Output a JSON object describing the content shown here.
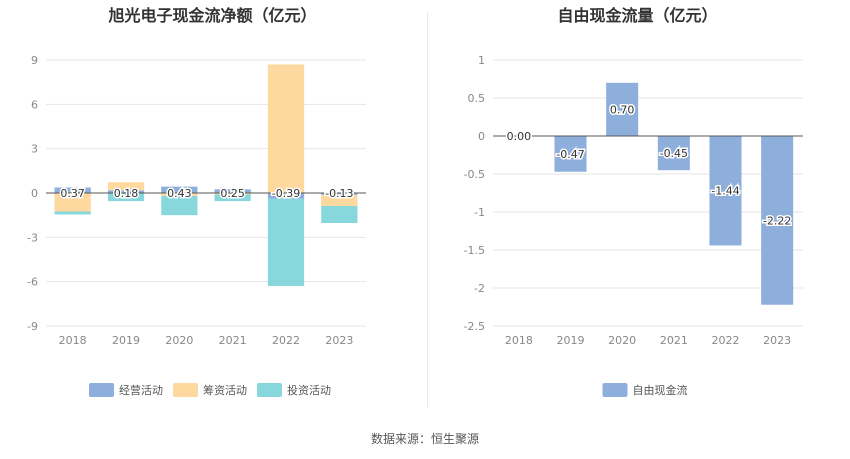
{
  "source_text": "数据来源：恒生聚源",
  "chart_data": [
    {
      "type": "bar",
      "stacked": true,
      "title": "旭光电子现金流净额（亿元）",
      "categories": [
        "2018",
        "2019",
        "2020",
        "2021",
        "2022",
        "2023"
      ],
      "ylim": [
        -9,
        9
      ],
      "yticks": [
        -9,
        -6,
        -3,
        0,
        3,
        6,
        9
      ],
      "grid": true,
      "legend_position": "bottom",
      "series": [
        {
          "name": "经营活动",
          "color": "#8eaedc",
          "values": [
            0.37,
            0.18,
            0.43,
            0.25,
            -0.39,
            -0.13
          ]
        },
        {
          "name": "筹资活动",
          "color": "#fdd9a0",
          "values": [
            -1.25,
            0.55,
            -0.2,
            -0.1,
            8.7,
            -0.75
          ]
        },
        {
          "name": "投资活动",
          "color": "#88d7dc",
          "values": [
            -0.2,
            -0.55,
            -1.3,
            -0.45,
            -5.9,
            -1.15
          ]
        }
      ],
      "data_labels": [
        "0.37",
        "0.18",
        "0.43",
        "0.25",
        "-0.39",
        "-0.13"
      ]
    },
    {
      "type": "bar",
      "title": "自由现金流量（亿元）",
      "categories": [
        "2018",
        "2019",
        "2020",
        "2021",
        "2022",
        "2023"
      ],
      "ylim": [
        -2.5,
        1
      ],
      "yticks": [
        -2.5,
        -2,
        -1.5,
        -1,
        -0.5,
        0,
        0.5,
        1
      ],
      "grid": true,
      "legend_position": "bottom",
      "series": [
        {
          "name": "自由现金流",
          "color": "#8eaedc",
          "values": [
            0.0,
            -0.47,
            0.7,
            -0.45,
            -1.44,
            -2.22
          ]
        }
      ],
      "data_labels": [
        "0.00",
        "-0.47",
        "0.70",
        "-0.45",
        "-1.44",
        "-2.22"
      ]
    }
  ]
}
